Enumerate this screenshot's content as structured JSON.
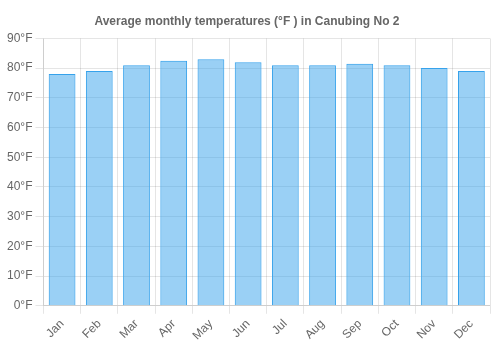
{
  "chart_data": {
    "type": "bar",
    "title": "Average monthly temperatures (°F ) in Canubing No 2",
    "categories": [
      "Jan",
      "Feb",
      "Mar",
      "Apr",
      "May",
      "Jun",
      "Jul",
      "Aug",
      "Sep",
      "Oct",
      "Nov",
      "Dec"
    ],
    "values": [
      78.0,
      79.0,
      81.0,
      82.5,
      83.0,
      82.0,
      81.0,
      81.0,
      81.5,
      81.0,
      80.0,
      79.0
    ],
    "ylim": [
      0,
      90
    ],
    "yticks": [
      {
        "value": 0,
        "label": "0°F"
      },
      {
        "value": 10,
        "label": "10°F"
      },
      {
        "value": 20,
        "label": "20°F"
      },
      {
        "value": 30,
        "label": "30°F"
      },
      {
        "value": 40,
        "label": "40°F"
      },
      {
        "value": 50,
        "label": "50°F"
      },
      {
        "value": 60,
        "label": "60°F"
      },
      {
        "value": 70,
        "label": "70°F"
      },
      {
        "value": 80,
        "label": "80°F"
      },
      {
        "value": 90,
        "label": "90°F"
      }
    ],
    "grid": true
  }
}
